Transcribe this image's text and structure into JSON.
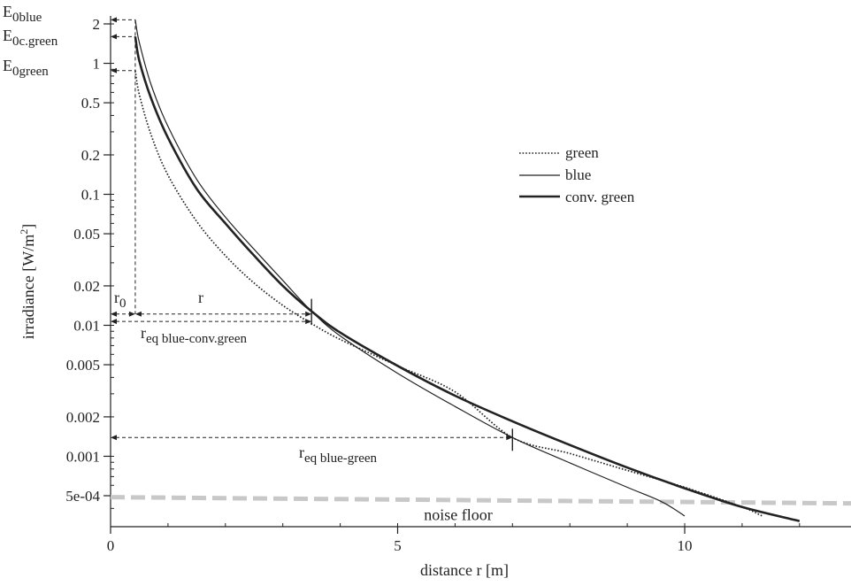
{
  "chart_data": {
    "type": "line",
    "xlabel": "distance r  [m]",
    "ylabel": "irradiance [W/m",
    "ylabel_sup": "2",
    "ylabel_close": "]",
    "xscale": "linear",
    "yscale": "log",
    "xlim": [
      0,
      12.9
    ],
    "ylim": [
      0.00032,
      2.6
    ],
    "grid": false,
    "legend_position": "right-middle",
    "x_ticks": [
      0,
      5,
      10
    ],
    "x_tick_labels": [
      "0",
      "5",
      "10"
    ],
    "y_ticks": [
      2,
      1,
      0.5,
      0.2,
      0.1,
      0.05,
      0.02,
      0.01,
      0.005,
      0.002,
      0.001,
      0.0005
    ],
    "y_tick_labels": [
      "2",
      "1",
      "0.5",
      "0.2",
      "0.1",
      "0.05",
      "0.02",
      "0.01",
      "0.005",
      "0.002",
      "0.001",
      "5e-04"
    ],
    "series": [
      {
        "name": "green",
        "style": "dotted",
        "color": "#222222",
        "x": [
          0.43,
          0.5,
          0.7,
          1.0,
          1.5,
          2.0,
          2.5,
          3.0,
          3.5,
          4.0,
          5.0,
          6.0,
          7.0,
          8.0,
          9.0,
          10.0,
          11.0,
          11.35
        ],
        "y": [
          0.88,
          0.58,
          0.29,
          0.14,
          0.062,
          0.034,
          0.021,
          0.0142,
          0.0103,
          0.0078,
          0.0049,
          0.0031,
          0.00139,
          0.00105,
          0.00078,
          0.00058,
          0.00041,
          0.00035
        ]
      },
      {
        "name": "blue",
        "style": "solid-thin",
        "color": "#222222",
        "x": [
          0.43,
          0.5,
          0.7,
          1.0,
          1.5,
          2.0,
          2.5,
          3.0,
          3.5,
          4.0,
          5.0,
          6.0,
          7.0,
          8.0,
          9.0,
          9.6,
          10.0
        ],
        "y": [
          2.15,
          1.45,
          0.7,
          0.33,
          0.13,
          0.067,
          0.038,
          0.022,
          0.0128,
          0.0083,
          0.0043,
          0.0024,
          0.00139,
          0.00089,
          0.00058,
          0.00045,
          0.00035
        ]
      },
      {
        "name": "conv. green",
        "style": "solid-thick",
        "color": "#222222",
        "x": [
          0.43,
          0.5,
          0.7,
          1.0,
          1.5,
          2.0,
          2.5,
          3.0,
          3.5,
          4.0,
          5.0,
          6.0,
          7.0,
          8.0,
          9.0,
          10.0,
          11.0,
          12.0
        ],
        "y": [
          1.6,
          1.05,
          0.55,
          0.27,
          0.11,
          0.06,
          0.034,
          0.02,
          0.0128,
          0.0088,
          0.0049,
          0.0029,
          0.00185,
          0.00122,
          0.00082,
          0.00057,
          0.00041,
          0.00032
        ]
      }
    ],
    "noise_floor": {
      "label": "noise floor",
      "y": 0.000465,
      "color": "#c8c8c8"
    },
    "annotations": {
      "e0blue": "E",
      "e0blue_sub": "0blue",
      "e0blue_y": 2.15,
      "e0cgreen": "E",
      "e0cgreen_sub": "0c.green",
      "e0cgreen_y": 1.6,
      "e0green": "E",
      "e0green_sub": "0green",
      "e0green_y": 0.88,
      "r0_label": "r",
      "r0_sub": "0",
      "r0": 0.43,
      "r_label": "r",
      "r_eq_blue_conv": "r",
      "r_eq_blue_conv_sub": "eq blue-conv.green",
      "r_eq_blue_conv_x": 3.5,
      "r_eq_blue_conv_y": 0.0128,
      "r_eq_blue_green": "r",
      "r_eq_blue_green_sub": "eq blue-green",
      "r_eq_blue_green_x": 7.0,
      "r_eq_blue_green_y": 0.00139
    }
  }
}
